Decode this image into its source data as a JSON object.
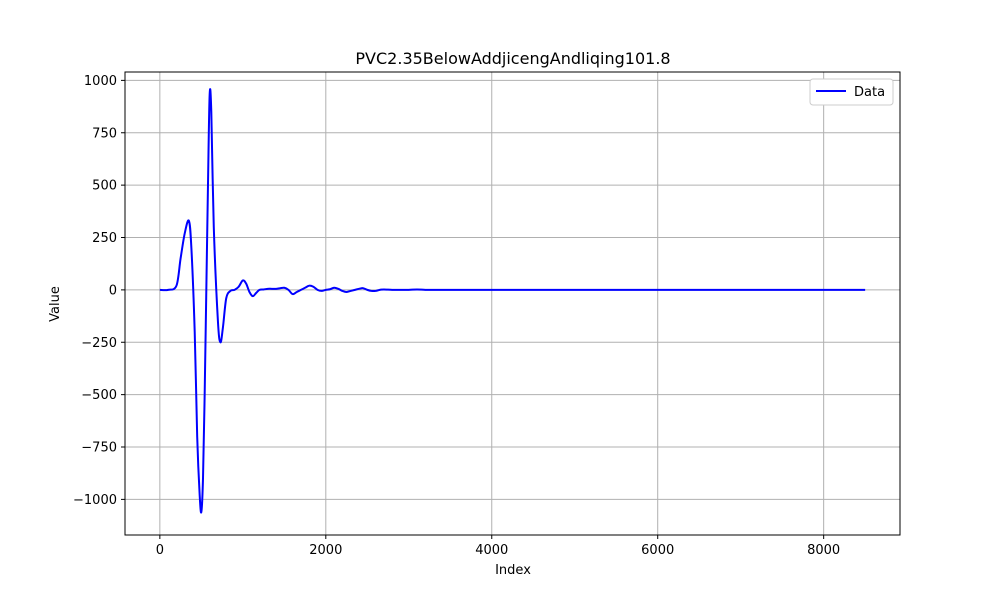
{
  "chart_data": {
    "type": "line",
    "title": "PVC2.35BelowAddjicengAndliqing101.8",
    "xlabel": "Index",
    "ylabel": "Value",
    "xlim": [
      -420,
      8920
    ],
    "ylim": [
      -1170,
      1040
    ],
    "xticks": [
      0,
      2000,
      4000,
      6000,
      8000
    ],
    "xtick_labels": [
      "0",
      "2000",
      "4000",
      "6000",
      "8000"
    ],
    "yticks": [
      1000,
      750,
      500,
      250,
      0,
      -250,
      -500,
      -750,
      -1000
    ],
    "ytick_labels": [
      "1000",
      "750",
      "500",
      "250",
      "0",
      "−250",
      "−500",
      "−750",
      "−1000"
    ],
    "grid": true,
    "legend_position": "top-right",
    "series_color": "#0000ff",
    "series": [
      {
        "name": "Data",
        "x": [
          0,
          100,
          200,
          250,
          300,
          350,
          380,
          420,
          450,
          480,
          500,
          520,
          540,
          560,
          580,
          600,
          620,
          650,
          700,
          730,
          760,
          800,
          850,
          900,
          950,
          1000,
          1040,
          1080,
          1120,
          1160,
          1200,
          1250,
          1300,
          1350,
          1400,
          1450,
          1500,
          1550,
          1600,
          1650,
          1700,
          1750,
          1800,
          1850,
          1900,
          1950,
          2000,
          2050,
          2100,
          2150,
          2200,
          2250,
          2300,
          2350,
          2400,
          2450,
          2500,
          2550,
          2600,
          2650,
          2700,
          2800,
          2900,
          3000,
          3100,
          3200,
          3300,
          3400,
          3500,
          3600,
          3800,
          4000,
          5000,
          6000,
          7000,
          8000,
          8500
        ],
        "y": [
          0,
          0,
          20,
          150,
          270,
          330,
          200,
          -200,
          -700,
          -980,
          -1060,
          -900,
          -500,
          0,
          500,
          930,
          850,
          300,
          -150,
          -250,
          -180,
          -40,
          -5,
          0,
          15,
          45,
          30,
          -10,
          -30,
          -15,
          0,
          2,
          5,
          5,
          5,
          8,
          10,
          0,
          -20,
          -10,
          0,
          10,
          20,
          15,
          0,
          -5,
          0,
          3,
          10,
          5,
          -5,
          -10,
          -5,
          0,
          5,
          8,
          0,
          -5,
          -5,
          0,
          2,
          0,
          0,
          0,
          2,
          0,
          0,
          0,
          0,
          0,
          0,
          0,
          0,
          0,
          0,
          0,
          0
        ]
      }
    ]
  }
}
